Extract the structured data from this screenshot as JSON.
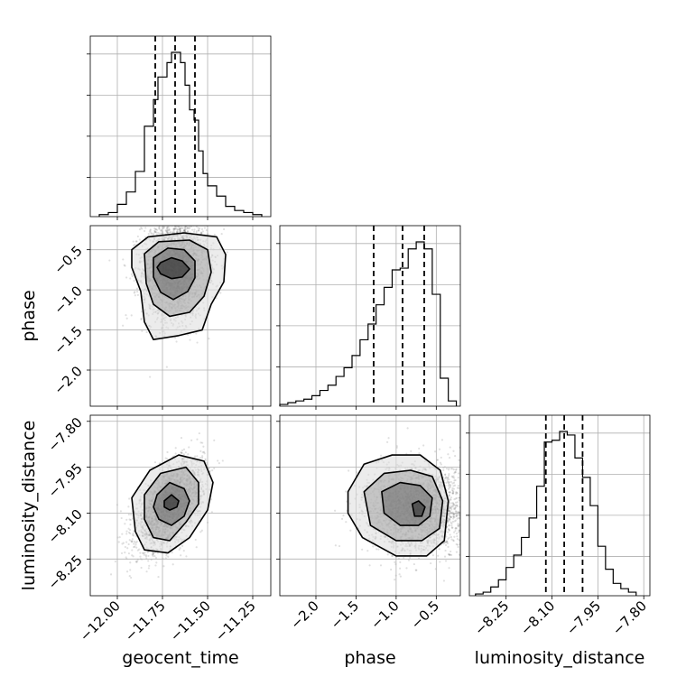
{
  "chart_data": {
    "type": "corner",
    "parameters": [
      "geocent_time",
      "phase",
      "luminosity_distance"
    ],
    "grid": true,
    "axes": {
      "geocent_time": {
        "range": [
          -12.15,
          -11.15
        ],
        "ticks": [
          -12.0,
          -11.75,
          -11.5,
          -11.25
        ],
        "tick_labels": [
          "−12.00",
          "−11.75",
          "−11.50",
          "−11.25"
        ]
      },
      "phase": {
        "range": [
          -2.45,
          -0.2
        ],
        "ticks": [
          -2.0,
          -1.5,
          -1.0,
          -0.5
        ],
        "tick_labels": [
          "−2.0",
          "−1.5",
          "−1.0",
          "−0.5"
        ]
      },
      "luminosity_distance": {
        "range": [
          -8.37,
          -7.78
        ],
        "ticks": [
          -8.25,
          -8.1,
          -7.95,
          -7.8
        ],
        "tick_labels": [
          "−8.25",
          "−8.10",
          "−7.95",
          "−7.80"
        ]
      }
    },
    "histograms": {
      "geocent_time": {
        "edges": [
          -12.1,
          -12.05,
          -12.0,
          -11.95,
          -11.9,
          -11.85,
          -11.8,
          -11.775,
          -11.75,
          -11.725,
          -11.7,
          -11.675,
          -11.65,
          -11.625,
          -11.6,
          -11.575,
          -11.55,
          -11.525,
          -11.5,
          -11.45,
          -11.4,
          -11.35,
          -11.3,
          -11.25,
          -11.2
        ],
        "counts": [
          1,
          2,
          6,
          12,
          22,
          44,
          57,
          68,
          68,
          75,
          80,
          80,
          75,
          64,
          52,
          47,
          32,
          21,
          15,
          10,
          5,
          3,
          2,
          1
        ],
        "quantiles": [
          -11.79,
          -11.68,
          -11.57
        ]
      },
      "phase": {
        "edges": [
          -2.45,
          -2.35,
          -2.25,
          -2.15,
          -2.05,
          -1.95,
          -1.85,
          -1.75,
          -1.65,
          -1.55,
          -1.45,
          -1.35,
          -1.25,
          -1.15,
          -1.05,
          -0.95,
          -0.85,
          -0.75,
          -0.65,
          -0.55,
          -0.45,
          -0.35,
          -0.25
        ],
        "counts": [
          1,
          2,
          3,
          4,
          6,
          9,
          12,
          17,
          22,
          29,
          38,
          47,
          58,
          68,
          78,
          79,
          90,
          94,
          90,
          64,
          16,
          3
        ],
        "quantiles": [
          -1.28,
          -0.92,
          -0.65
        ]
      },
      "luminosity_distance": {
        "edges": [
          -8.35,
          -8.325,
          -8.3,
          -8.275,
          -8.25,
          -8.225,
          -8.2,
          -8.175,
          -8.15,
          -8.125,
          -8.1,
          -8.075,
          -8.05,
          -8.025,
          -8.0,
          -7.975,
          -7.95,
          -7.925,
          -7.9,
          -7.875,
          -7.85,
          -7.825
        ],
        "counts": [
          1,
          2,
          5,
          9,
          16,
          23,
          33,
          44,
          62,
          87,
          88,
          93,
          91,
          78,
          67,
          51,
          28,
          15,
          7,
          4,
          2
        ],
        "quantiles": [
          -8.12,
          -8.06,
          -8.0
        ]
      }
    },
    "joint": {
      "phase_vs_geocent_time": {
        "x": "geocent_time",
        "y": "phase",
        "peak": [
          -11.68,
          -0.72
        ],
        "contours": [
          [
            [
              -11.76,
              -0.66
            ],
            [
              -11.7,
              -0.6
            ],
            [
              -11.64,
              -0.64
            ],
            [
              -11.6,
              -0.74
            ],
            [
              -11.64,
              -0.84
            ],
            [
              -11.7,
              -0.86
            ],
            [
              -11.76,
              -0.8
            ],
            [
              -11.78,
              -0.72
            ]
          ],
          [
            [
              -11.8,
              -0.6
            ],
            [
              -11.72,
              -0.48
            ],
            [
              -11.63,
              -0.5
            ],
            [
              -11.57,
              -0.64
            ],
            [
              -11.57,
              -0.85
            ],
            [
              -11.61,
              -1.02
            ],
            [
              -11.69,
              -1.12
            ],
            [
              -11.76,
              -1.03
            ],
            [
              -11.8,
              -0.84
            ]
          ],
          [
            [
              -11.85,
              -0.55
            ],
            [
              -11.77,
              -0.4
            ],
            [
              -11.6,
              -0.38
            ],
            [
              -11.5,
              -0.5
            ],
            [
              -11.48,
              -0.78
            ],
            [
              -11.52,
              -1.08
            ],
            [
              -11.6,
              -1.28
            ],
            [
              -11.71,
              -1.33
            ],
            [
              -11.8,
              -1.18
            ],
            [
              -11.84,
              -0.92
            ]
          ],
          [
            [
              -11.92,
              -0.5
            ],
            [
              -11.83,
              -0.34
            ],
            [
              -11.63,
              -0.29
            ],
            [
              -11.45,
              -0.34
            ],
            [
              -11.4,
              -0.56
            ],
            [
              -11.41,
              -0.9
            ],
            [
              -11.48,
              -1.18
            ],
            [
              -11.53,
              -1.5
            ],
            [
              -11.66,
              -1.57
            ],
            [
              -11.8,
              -1.62
            ],
            [
              -11.85,
              -1.4
            ],
            [
              -11.87,
              -1.02
            ],
            [
              -11.92,
              -0.72
            ]
          ]
        ]
      },
      "luminosity_distance_vs_geocent_time": {
        "x": "geocent_time",
        "y": "luminosity_distance",
        "peak": [
          -11.71,
          -8.075
        ],
        "contours": [
          [
            [
              -11.74,
              -8.06
            ],
            [
              -11.7,
              -8.04
            ],
            [
              -11.66,
              -8.06
            ],
            [
              -11.67,
              -8.08
            ],
            [
              -11.71,
              -8.09
            ],
            [
              -11.74,
              -8.08
            ]
          ],
          [
            [
              -11.78,
              -8.04
            ],
            [
              -11.71,
              -8.0
            ],
            [
              -11.63,
              -8.02
            ],
            [
              -11.6,
              -8.06
            ],
            [
              -11.63,
              -8.11
            ],
            [
              -11.7,
              -8.14
            ],
            [
              -11.77,
              -8.12
            ],
            [
              -11.8,
              -8.08
            ]
          ],
          [
            [
              -11.85,
              -8.04
            ],
            [
              -11.76,
              -7.97
            ],
            [
              -11.62,
              -7.95
            ],
            [
              -11.55,
              -8.0
            ],
            [
              -11.55,
              -8.07
            ],
            [
              -11.62,
              -8.13
            ],
            [
              -11.71,
              -8.19
            ],
            [
              -11.8,
              -8.18
            ],
            [
              -11.85,
              -8.12
            ]
          ],
          [
            [
              -11.92,
              -8.05
            ],
            [
              -11.82,
              -7.96
            ],
            [
              -11.66,
              -7.91
            ],
            [
              -11.52,
              -7.93
            ],
            [
              -11.47,
              -8.0
            ],
            [
              -11.5,
              -8.09
            ],
            [
              -11.6,
              -8.18
            ],
            [
              -11.72,
              -8.23
            ],
            [
              -11.85,
              -8.22
            ],
            [
              -11.9,
              -8.16
            ]
          ]
        ]
      },
      "luminosity_distance_vs_phase": {
        "x": "phase",
        "y": "luminosity_distance",
        "peak": [
          -0.72,
          -8.085
        ],
        "contours": [
          [
            [
              -0.8,
              -8.07
            ],
            [
              -0.72,
              -8.06
            ],
            [
              -0.64,
              -8.08
            ],
            [
              -0.68,
              -8.11
            ],
            [
              -0.77,
              -8.11
            ]
          ],
          [
            [
              -1.18,
              -8.03
            ],
            [
              -0.95,
              -8.0
            ],
            [
              -0.7,
              -8.01
            ],
            [
              -0.55,
              -8.05
            ],
            [
              -0.58,
              -8.11
            ],
            [
              -0.72,
              -8.14
            ],
            [
              -0.95,
              -8.14
            ],
            [
              -1.15,
              -8.1
            ]
          ],
          [
            [
              -1.4,
              -8.03
            ],
            [
              -1.15,
              -7.97
            ],
            [
              -0.82,
              -7.96
            ],
            [
              -0.55,
              -7.98
            ],
            [
              -0.42,
              -8.06
            ],
            [
              -0.46,
              -8.15
            ],
            [
              -0.68,
              -8.19
            ],
            [
              -1.0,
              -8.19
            ],
            [
              -1.32,
              -8.14
            ]
          ],
          [
            [
              -1.6,
              -8.03
            ],
            [
              -1.4,
              -7.94
            ],
            [
              -1.05,
              -7.91
            ],
            [
              -0.7,
              -7.91
            ],
            [
              -0.45,
              -7.96
            ],
            [
              -0.35,
              -8.06
            ],
            [
              -0.4,
              -8.19
            ],
            [
              -0.62,
              -8.24
            ],
            [
              -1.0,
              -8.24
            ],
            [
              -1.42,
              -8.18
            ],
            [
              -1.6,
              -8.1
            ]
          ]
        ]
      }
    }
  }
}
